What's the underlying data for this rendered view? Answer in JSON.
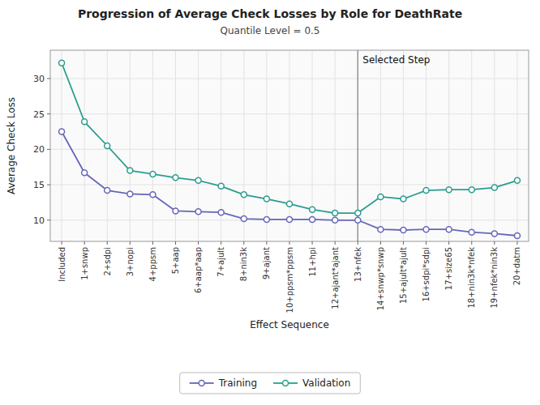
{
  "chart_data": {
    "type": "line",
    "title": "Progression of Average Check Losses by Role for DeathRate",
    "subtitle": "Quantile Level = 0.5",
    "xlabel": "Effect Sequence",
    "ylabel": "Average Check Loss",
    "annotations": [
      {
        "text": "Selected Step",
        "x": "13+nfek"
      }
    ],
    "categories": [
      "Included",
      "1+snwp",
      "2+sdpi",
      "3+nopi",
      "4+ppsm",
      "5+aap",
      "6+aap*aap",
      "7+ajult",
      "8+nin3k",
      "9+ajant",
      "10+ppsm*ppsm",
      "11+hpi",
      "12+ajant*ajant",
      "13+nfek",
      "14+snwp*snwp",
      "15+ajult*ajult",
      "16+sdpi*sdpi",
      "17+size65",
      "18+nin3k*nfek",
      "19+nfek*nin3k",
      "20+datm"
    ],
    "series": [
      {
        "name": "Training",
        "color": "#6666bb",
        "marker": "circle",
        "values": [
          22.5,
          16.7,
          14.2,
          13.7,
          13.6,
          11.3,
          11.2,
          11.1,
          10.2,
          10.1,
          10.1,
          10.1,
          10.0,
          10.0,
          8.7,
          8.6,
          8.7,
          8.7,
          8.3,
          8.1,
          7.8
        ]
      },
      {
        "name": "Validation",
        "color": "#2a9d8f",
        "marker": "circle",
        "values": [
          32.2,
          23.9,
          20.5,
          17.0,
          16.5,
          16.0,
          15.6,
          14.8,
          13.6,
          13.0,
          12.3,
          11.5,
          11.0,
          11.0,
          13.3,
          13.0,
          14.2,
          14.3,
          14.3,
          14.6,
          15.6
        ]
      }
    ],
    "ylim": [
      7,
      34
    ],
    "yticks": [
      10,
      15,
      20,
      25,
      30
    ],
    "grid": true,
    "legend": "bottom"
  }
}
